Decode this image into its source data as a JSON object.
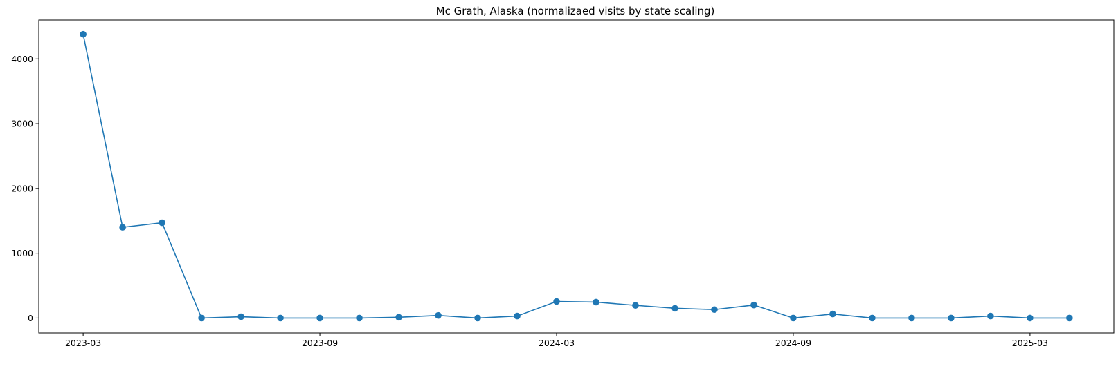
{
  "chart_data": {
    "type": "line",
    "title": "Mc Grath, Alaska (normalizaed visits by state scaling)",
    "xlabel": "",
    "ylabel": "",
    "x": [
      "2023-03",
      "2023-04",
      "2023-05",
      "2023-06",
      "2023-07",
      "2023-08",
      "2023-09",
      "2023-10",
      "2023-11",
      "2023-12",
      "2024-01",
      "2024-02",
      "2024-03",
      "2024-04",
      "2024-05",
      "2024-06",
      "2024-07",
      "2024-08",
      "2024-09",
      "2024-10",
      "2024-11",
      "2024-12",
      "2025-01",
      "2025-02",
      "2025-03",
      "2025-04"
    ],
    "series": [
      {
        "values": [
          4380,
          1400,
          1470,
          0,
          20,
          0,
          0,
          0,
          12,
          40,
          0,
          30,
          255,
          245,
          195,
          150,
          130,
          200,
          0,
          62,
          0,
          0,
          0,
          30,
          0,
          0
        ]
      }
    ],
    "ylim": [
      -230,
      4600
    ],
    "yticks": [
      0,
      1000,
      2000,
      3000,
      4000
    ],
    "yticklabels": [
      "0",
      "1000",
      "2000",
      "3000",
      "4000"
    ],
    "xticks": [
      "2023-03",
      "2023-09",
      "2024-03",
      "2024-09",
      "2025-03"
    ],
    "xticklabels": [
      "2023-03",
      "2023-09",
      "2024-03",
      "2024-09",
      "2025-03"
    ],
    "grid": false,
    "legend": "none",
    "line_color": "#1f77b4",
    "marker": "circle"
  }
}
